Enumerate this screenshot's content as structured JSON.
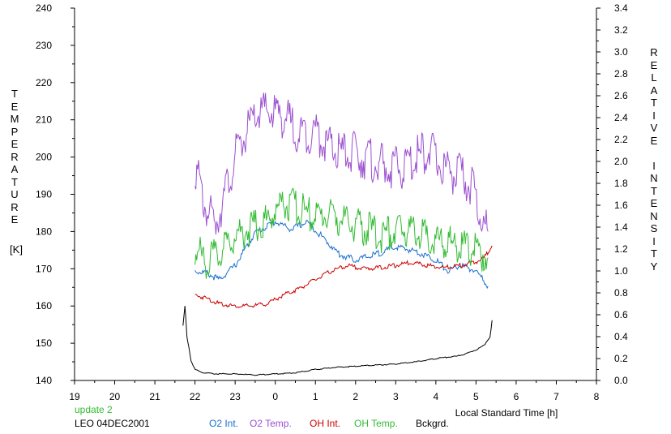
{
  "chart_data": {
    "type": "line",
    "left_axis": {
      "label": "TEMPERATURE",
      "unit": "[K]",
      "range": [
        140,
        240
      ],
      "ticks": [
        "240",
        "230",
        "220",
        "210",
        "200",
        "190",
        "180",
        "170",
        "160",
        "150",
        "140"
      ]
    },
    "right_axis": {
      "label": "RELATIVE INTENSITY",
      "range": [
        0.0,
        3.4
      ],
      "ticks": [
        "3.4",
        "3.2",
        "3.0",
        "2.8",
        "2.6",
        "2.4",
        "2.2",
        "2.0",
        "1.8",
        "1.6",
        "1.4",
        "1.2",
        "1.0",
        "0.8",
        "0.6",
        "0.4",
        "0.2",
        "0.0"
      ]
    },
    "x_axis": {
      "label": "Local Standard Time [h]",
      "ticks": [
        "19",
        "20",
        "21",
        "22",
        "23",
        "0",
        "1",
        "2",
        "3",
        "4",
        "5",
        "6",
        "7",
        "8"
      ]
    },
    "series": [
      {
        "name": "O2 Int.",
        "axis": "right",
        "color": "#1a6fd0",
        "x": [
          22.0,
          22.3,
          22.6,
          23.0,
          23.5,
          24.0,
          24.4,
          24.8,
          25.2,
          25.6,
          26.0,
          26.5,
          27.0,
          27.5,
          28.0,
          28.3,
          28.6,
          29.0,
          29.3
        ],
        "y": [
          1.0,
          0.98,
          0.92,
          1.05,
          1.35,
          1.45,
          1.38,
          1.45,
          1.3,
          1.15,
          1.1,
          1.15,
          1.22,
          1.18,
          1.1,
          1.0,
          1.05,
          1.0,
          0.86
        ]
      },
      {
        "name": "O2 Temp.",
        "axis": "left",
        "color": "#9b50d0",
        "x": [
          22.0,
          22.2,
          22.5,
          22.8,
          23.0,
          23.3,
          23.6,
          24.0,
          24.3,
          24.6,
          25.0,
          25.3,
          25.6,
          26.0,
          26.4,
          26.8,
          27.2,
          27.5,
          27.8,
          28.2,
          28.6,
          28.9,
          29.1,
          29.3
        ],
        "y": [
          198,
          188,
          182,
          192,
          200,
          207,
          212,
          212,
          210,
          206,
          207,
          203,
          201,
          201,
          199,
          197,
          197,
          200,
          202,
          197,
          195,
          192,
          185,
          180
        ]
      },
      {
        "name": "OH Int.",
        "axis": "right",
        "color": "#cc0000",
        "x": [
          22.0,
          22.3,
          22.6,
          23.0,
          23.4,
          23.8,
          24.2,
          24.6,
          25.0,
          25.4,
          25.8,
          26.2,
          26.6,
          27.0,
          27.4,
          27.8,
          28.2,
          28.6,
          29.0,
          29.2,
          29.4
        ],
        "y": [
          0.78,
          0.75,
          0.7,
          0.68,
          0.68,
          0.7,
          0.78,
          0.84,
          0.92,
          1.0,
          1.05,
          1.02,
          1.03,
          1.05,
          1.08,
          1.05,
          1.03,
          1.05,
          1.08,
          1.12,
          1.23
        ]
      },
      {
        "name": "OH Temp.",
        "axis": "left",
        "color": "#33bb33",
        "x": [
          22.0,
          22.3,
          22.6,
          23.0,
          23.4,
          23.8,
          24.2,
          24.6,
          25.0,
          25.4,
          25.8,
          26.2,
          26.6,
          27.0,
          27.4,
          27.8,
          28.2,
          28.6,
          29.0,
          29.3
        ],
        "y": [
          175,
          172,
          174,
          179,
          181,
          183,
          188,
          186,
          184,
          185,
          182,
          181,
          179,
          180,
          181,
          178,
          177,
          176,
          175,
          173
        ]
      },
      {
        "name": "Bckgrd.",
        "axis": "right",
        "color": "#000000",
        "x": [
          21.7,
          21.75,
          21.8,
          21.85,
          21.9,
          22.0,
          22.2,
          22.5,
          23.0,
          23.5,
          24.0,
          24.5,
          25.0,
          25.5,
          26.0,
          26.5,
          27.0,
          27.5,
          28.0,
          28.5,
          28.8,
          29.0,
          29.2,
          29.35,
          29.4
        ],
        "y": [
          0.5,
          0.68,
          0.4,
          0.3,
          0.18,
          0.1,
          0.07,
          0.06,
          0.06,
          0.05,
          0.06,
          0.07,
          0.1,
          0.12,
          0.13,
          0.14,
          0.15,
          0.17,
          0.2,
          0.22,
          0.25,
          0.28,
          0.32,
          0.4,
          0.55
        ]
      }
    ]
  },
  "footer": {
    "update_label": "update 2",
    "station_label": "LEO 04DEC2001",
    "legend": [
      {
        "label": "O2 Int.",
        "color": "#1a6fd0"
      },
      {
        "label": "O2 Temp.",
        "color": "#9b50d0"
      },
      {
        "label": "OH Int.",
        "color": "#cc0000"
      },
      {
        "label": "OH Temp.",
        "color": "#33bb33"
      },
      {
        "label": "Bckgrd.",
        "color": "#000000"
      }
    ]
  }
}
